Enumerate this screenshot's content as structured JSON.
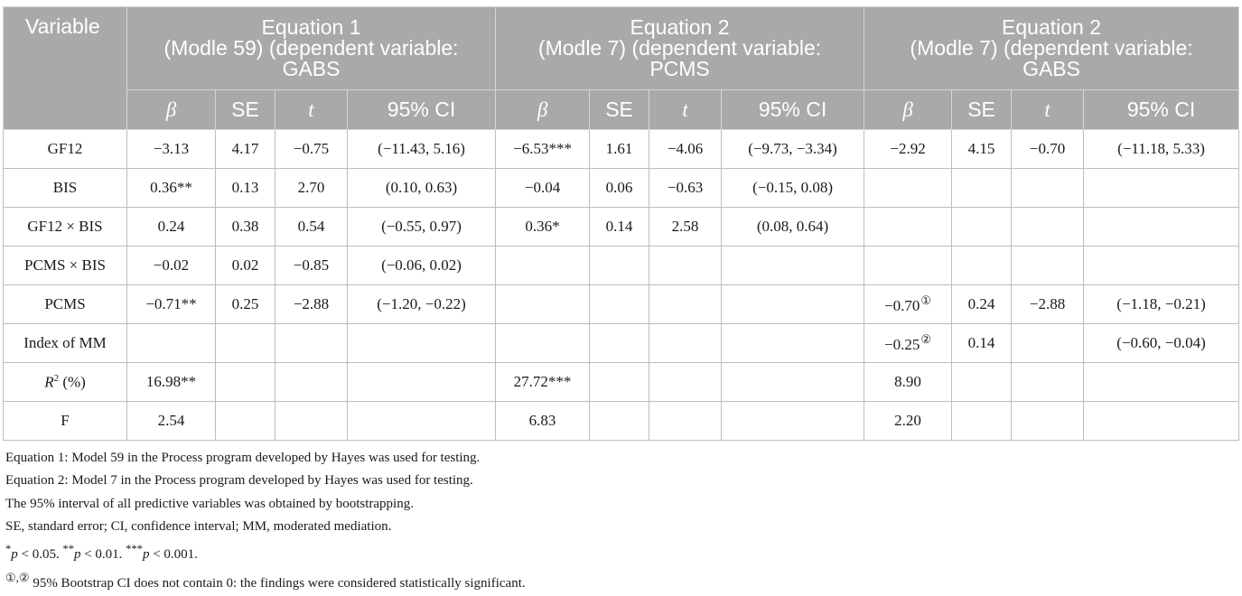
{
  "table": {
    "variable_header": "Variable",
    "equations": [
      {
        "line1": "Equation 1",
        "line2": "(Modle 59) (dependent variable:",
        "line3": "GABS"
      },
      {
        "line1": "Equation 2",
        "line2": "(Modle 7) (dependent variable:",
        "line3": "PCMS"
      },
      {
        "line1": "Equation 2",
        "line2": "(Modle 7) (dependent variable:",
        "line3": "GABS"
      }
    ],
    "subheaders": [
      "β",
      "SE",
      "t",
      "95% CI"
    ],
    "rows": [
      {
        "label": "GF12",
        "cells": [
          "−3.13",
          "4.17",
          "−0.75",
          "(−11.43, 5.16)",
          "−6.53***",
          "1.61",
          "−4.06",
          "(−9.73, −3.34)",
          "−2.92",
          "4.15",
          "−0.70",
          "(−11.18, 5.33)"
        ]
      },
      {
        "label": "BIS",
        "cells": [
          "0.36**",
          "0.13",
          "2.70",
          "(0.10, 0.63)",
          "−0.04",
          "0.06",
          "−0.63",
          "(−0.15, 0.08)",
          "",
          "",
          "",
          ""
        ]
      },
      {
        "label": "GF12 × BIS",
        "cells": [
          "0.24",
          "0.38",
          "0.54",
          "(−0.55, 0.97)",
          "0.36*",
          "0.14",
          "2.58",
          "(0.08, 0.64)",
          "",
          "",
          "",
          ""
        ]
      },
      {
        "label": "PCMS × BIS",
        "cells": [
          "−0.02",
          "0.02",
          "−0.85",
          "(−0.06, 0.02)",
          "",
          "",
          "",
          "",
          "",
          "",
          "",
          ""
        ]
      },
      {
        "label": "PCMS",
        "cells": [
          "−0.71**",
          "0.25",
          "−2.88",
          "(−1.20, −0.22)",
          "",
          "",
          "",
          "",
          "−0.70",
          "0.24",
          "−2.88",
          "(−1.18, −0.21)"
        ]
      },
      {
        "label": "Index of MM",
        "cells": [
          "",
          "",
          "",
          "",
          "",
          "",
          "",
          "",
          "−0.25",
          "0.14",
          "",
          "(−0.60, −0.04)"
        ]
      },
      {
        "label_r": "R",
        "label_sup": "2",
        "label_rest": " (%)",
        "cells": [
          "16.98**",
          "",
          "",
          "",
          "27.72***",
          "",
          "",
          "",
          "8.90",
          "",
          "",
          ""
        ]
      },
      {
        "label": "F",
        "cells": [
          "2.54",
          "",
          "",
          "",
          "6.83",
          "",
          "",
          "",
          "2.20",
          "",
          "",
          ""
        ]
      }
    ],
    "circle_marks": {
      "one": "①",
      "two": "②"
    }
  },
  "notes": {
    "n1": "Equation 1: Model 59 in the Process program developed by Hayes was used for testing.",
    "n2": "Equation 2: Model 7 in the Process program developed by Hayes was used for testing.",
    "n3": "The 95% interval of all predictive variables was obtained by bootstrapping.",
    "n4": "SE, standard error; CI, confidence interval; MM, moderated mediation.",
    "n5": {
      "s1": "*",
      "p1": "p",
      "t1": " < 0.05. ",
      "s2": "**",
      "p2": "p",
      "t2": " < 0.01. ",
      "s3": "***",
      "p3": "p",
      "t3": " < 0.001."
    },
    "n6": {
      "marks": "①,②",
      "text": " 95% Bootstrap CI does not contain 0: the findings were considered statistically significant."
    }
  }
}
